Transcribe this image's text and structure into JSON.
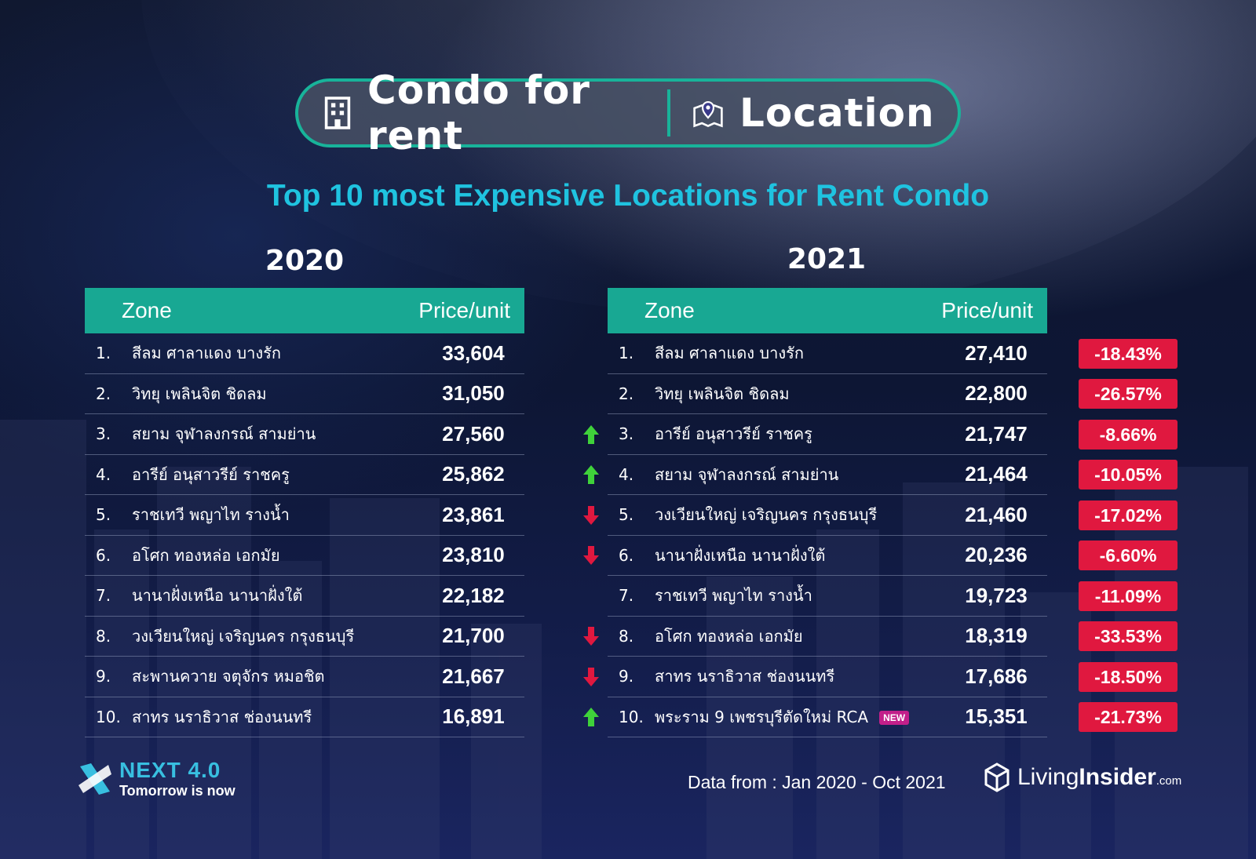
{
  "header": {
    "left_title": "Condo for rent",
    "left_icon": "building-icon",
    "right_title": "Location",
    "right_icon": "map-pin-icon",
    "accent_color": "#18b39a"
  },
  "subtitle": "Top 10 most Expensive Locations for Rent Condo",
  "table_2020": {
    "year": "2020",
    "col_zone": "Zone",
    "col_price": "Price/unit",
    "rows": [
      {
        "num": "1.",
        "zone": "สีลม ศาลาแดง บางรัก",
        "price": "33,604"
      },
      {
        "num": "2.",
        "zone": "วิทยุ เพลินจิต ชิดลม",
        "price": "31,050"
      },
      {
        "num": "3.",
        "zone": "สยาม จุฬาลงกรณ์ สามย่าน",
        "price": "27,560"
      },
      {
        "num": "4.",
        "zone": "อารีย์ อนุสาวรีย์ ราชครู",
        "price": "25,862"
      },
      {
        "num": "5.",
        "zone": "ราชเทวี พญาไท รางน้ำ",
        "price": "23,861"
      },
      {
        "num": "6.",
        "zone": "อโศก ทองหล่อ เอกมัย",
        "price": "23,810"
      },
      {
        "num": "7.",
        "zone": "นานาฝั่งเหนือ นานาฝั่งใต้",
        "price": "22,182"
      },
      {
        "num": "8.",
        "zone": "วงเวียนใหญ่ เจริญนคร กรุงธนบุรี",
        "price": "21,700"
      },
      {
        "num": "9.",
        "zone": "สะพานควาย จตุจักร หมอชิต",
        "price": "21,667"
      },
      {
        "num": "10.",
        "zone": "สาทร นราธิวาส ช่องนนทรี",
        "price": "16,891"
      }
    ]
  },
  "table_2021": {
    "year": "2021",
    "col_zone": "Zone",
    "col_price": "Price/unit",
    "new_badge": "NEW",
    "rows": [
      {
        "num": "1.",
        "zone": "สีลม ศาลาแดง บางรัก",
        "price": "27,410",
        "change": "-18.43%",
        "trend": "none"
      },
      {
        "num": "2.",
        "zone": "วิทยุ เพลินจิต ชิดลม",
        "price": "22,800",
        "change": "-26.57%",
        "trend": "none"
      },
      {
        "num": "3.",
        "zone": "อารีย์ อนุสาวรีย์ ราชครู",
        "price": "21,747",
        "change": "-8.66%",
        "trend": "up"
      },
      {
        "num": "4.",
        "zone": "สยาม จุฬาลงกรณ์ สามย่าน",
        "price": "21,464",
        "change": "-10.05%",
        "trend": "up"
      },
      {
        "num": "5.",
        "zone": "วงเวียนใหญ่ เจริญนคร กรุงธนบุรี",
        "price": "21,460",
        "change": "-17.02%",
        "trend": "down"
      },
      {
        "num": "6.",
        "zone": "นานาฝั่งเหนือ นานาฝั่งใต้",
        "price": "20,236",
        "change": "-6.60%",
        "trend": "down"
      },
      {
        "num": "7.",
        "zone": "ราชเทวี พญาไท รางน้ำ",
        "price": "19,723",
        "change": "-11.09%",
        "trend": "none"
      },
      {
        "num": "8.",
        "zone": "อโศก ทองหล่อ เอกมัย",
        "price": "18,319",
        "change": "-33.53%",
        "trend": "down"
      },
      {
        "num": "9.",
        "zone": "สาทร นราธิวาส ช่องนนทรี",
        "price": "17,686",
        "change": "-18.50%",
        "trend": "down"
      },
      {
        "num": "10.",
        "zone": "พระราม 9 เพชรบุรีตัดใหม่ RCA",
        "price": "15,351",
        "change": "-21.73%",
        "trend": "up"
      }
    ]
  },
  "colors": {
    "up": "#3fd23a",
    "down": "#e0183f",
    "change_badge": "#e0183f",
    "new_badge": "#c21f8a"
  },
  "footer": {
    "next_title": "NEXT 4.0",
    "next_sub": "Tomorrow is now",
    "data_from": "Data from : Jan 2020 - Oct 2021",
    "brand_living": "Living",
    "brand_insider": "Insider",
    "brand_com": ".com"
  }
}
